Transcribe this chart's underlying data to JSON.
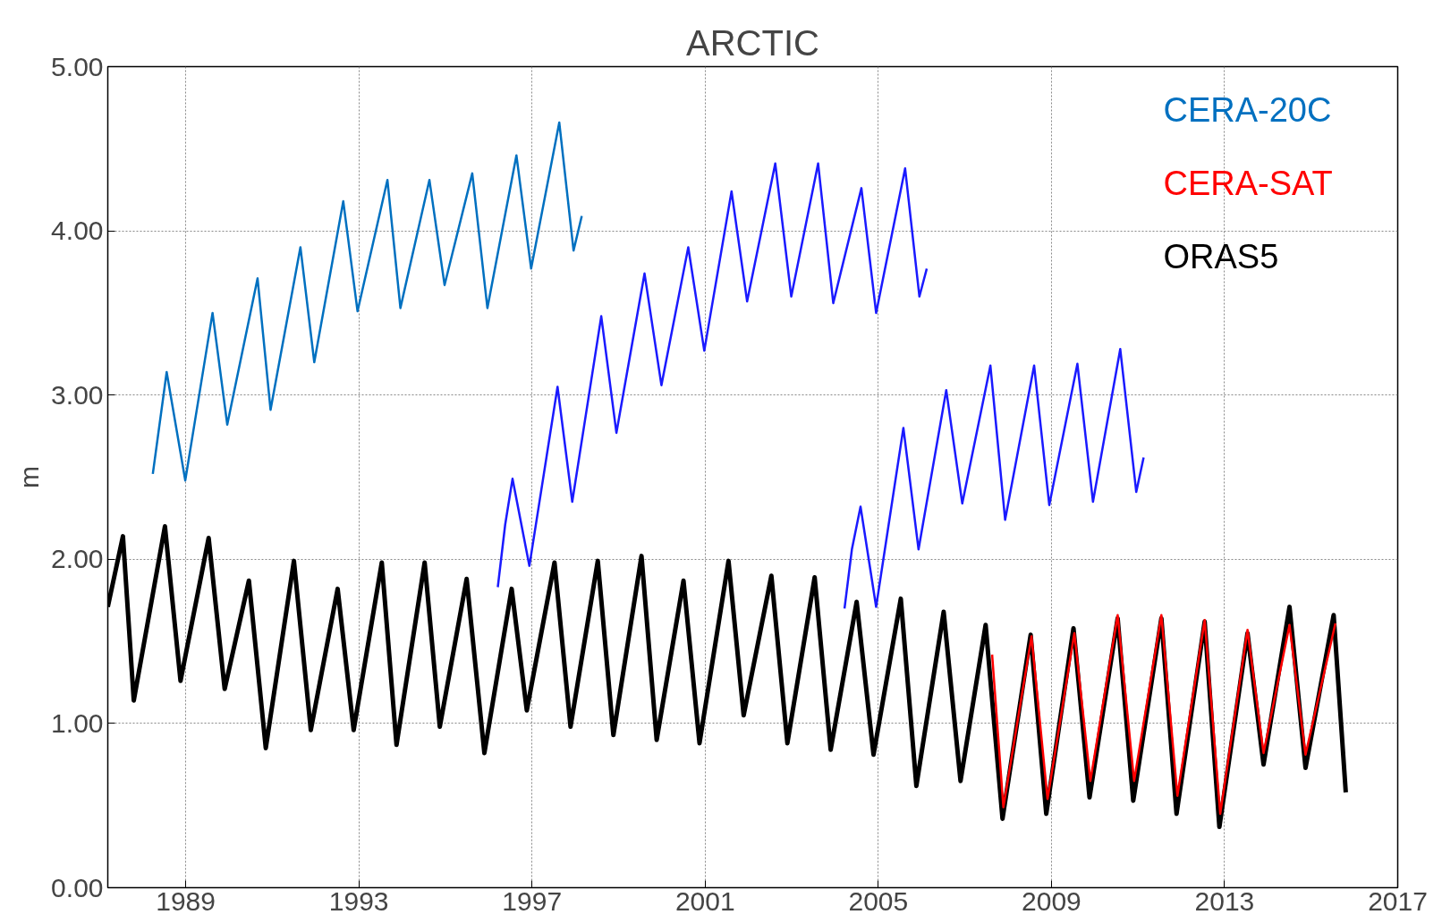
{
  "chart_data": {
    "type": "line",
    "title": "ARCTIC",
    "ylabel": "m",
    "xlim": [
      1987.2,
      2017
    ],
    "xticks": [
      1989,
      1993,
      1997,
      2001,
      2005,
      2009,
      2013,
      2017
    ],
    "ylim": [
      0,
      5
    ],
    "yticks": [
      {
        "value": 0,
        "label": "0.00"
      },
      {
        "value": 1,
        "label": "1.00"
      },
      {
        "value": 2,
        "label": "2.00"
      },
      {
        "value": 3,
        "label": "3.00"
      },
      {
        "value": 4,
        "label": "4.00"
      },
      {
        "value": 5,
        "label": "5.00"
      }
    ],
    "grid": true,
    "legend": "top right",
    "marker": "none",
    "line_style": "solid",
    "series": [
      {
        "name": "CERA-20C",
        "color": "#0070c0",
        "x": [
          1988.24,
          1988.56,
          1988.99,
          1989.62,
          1989.96,
          1990.66,
          1990.96,
          1991.65,
          1991.97,
          1992.64,
          1992.97,
          1993.66,
          1993.96,
          1994.63,
          1994.98,
          1995.62,
          1995.97,
          1996.64,
          1996.98,
          1997.63,
          1997.96,
          1998.15
        ],
        "values": [
          2.52,
          3.14,
          2.48,
          3.5,
          2.82,
          3.71,
          2.91,
          3.9,
          3.2,
          4.18,
          3.51,
          4.31,
          3.53,
          4.31,
          3.67,
          4.35,
          3.53,
          4.46,
          3.77,
          4.66,
          3.88,
          4.09
        ]
      },
      {
        "color": "#1a1aff",
        "x": [
          1996.21,
          1996.38,
          1996.55,
          1996.94,
          1997.59,
          1997.93,
          1998.6,
          1998.95,
          1999.6,
          1999.99,
          2000.61,
          2000.98,
          2001.61,
          2001.97,
          2002.62,
          2002.99,
          2003.61,
          2003.96,
          2004.61,
          2004.95,
          2005.62,
          2005.95,
          2006.12
        ],
        "values": [
          1.83,
          2.21,
          2.49,
          1.96,
          3.05,
          2.35,
          3.48,
          2.77,
          3.74,
          3.06,
          3.9,
          3.27,
          4.24,
          3.57,
          4.41,
          3.6,
          4.41,
          3.56,
          4.26,
          3.5,
          4.38,
          3.6,
          3.77
        ]
      },
      {
        "color": "#1a1aff",
        "x": [
          2004.22,
          2004.39,
          2004.59,
          2004.95,
          2005.58,
          2005.93,
          2006.57,
          2006.94,
          2007.59,
          2007.93,
          2008.6,
          2008.95,
          2009.6,
          2009.96,
          2010.59,
          2010.96,
          2011.13
        ],
        "values": [
          1.7,
          2.06,
          2.32,
          1.71,
          2.8,
          2.06,
          3.03,
          2.34,
          3.18,
          2.24,
          3.18,
          2.33,
          3.19,
          2.35,
          3.28,
          2.41,
          2.62
        ]
      },
      {
        "name": "CERA-SAT",
        "color": "#ff0000",
        "x": [
          2007.63,
          2007.89,
          2008.54,
          2008.91,
          2009.53,
          2009.9,
          2010.53,
          2010.91,
          2011.54,
          2011.91,
          2012.54,
          2012.9,
          2013.53,
          2013.9,
          2014.5,
          2014.87,
          2015.56
        ],
        "values": [
          1.42,
          0.49,
          1.53,
          0.54,
          1.55,
          0.65,
          1.66,
          0.65,
          1.66,
          0.56,
          1.63,
          0.45,
          1.57,
          0.82,
          1.6,
          0.81,
          1.61
        ]
      },
      {
        "name": "ORAS5",
        "color": "#000000",
        "x": [
          1987.2,
          1987.55,
          1987.8,
          1988.52,
          1988.88,
          1989.53,
          1989.9,
          1990.46,
          1990.85,
          1991.5,
          1991.89,
          1992.51,
          1992.88,
          1993.53,
          1993.87,
          1994.52,
          1994.87,
          1995.49,
          1995.9,
          1996.53,
          1996.88,
          1997.52,
          1997.89,
          1998.52,
          1998.88,
          1999.53,
          1999.88,
          2000.5,
          2000.87,
          2001.54,
          2001.89,
          2002.53,
          2002.9,
          2003.53,
          2003.9,
          2004.5,
          2004.89,
          2005.52,
          2005.88,
          2006.51,
          2006.9,
          2007.48,
          2007.87,
          2008.52,
          2008.88,
          2009.51,
          2009.88,
          2010.53,
          2010.89,
          2011.54,
          2011.89,
          2012.54,
          2012.88,
          2013.53,
          2013.9,
          2014.5,
          2014.87,
          2015.52,
          2015.8
        ],
        "values": [
          1.71,
          2.14,
          1.14,
          2.2,
          1.26,
          2.13,
          1.21,
          1.87,
          0.85,
          1.99,
          0.96,
          1.82,
          0.96,
          1.98,
          0.87,
          1.98,
          0.98,
          1.88,
          0.82,
          1.82,
          1.08,
          1.98,
          0.98,
          1.99,
          0.93,
          2.02,
          0.9,
          1.87,
          0.88,
          1.99,
          1.05,
          1.9,
          0.88,
          1.89,
          0.84,
          1.74,
          0.81,
          1.76,
          0.62,
          1.68,
          0.65,
          1.6,
          0.42,
          1.54,
          0.45,
          1.58,
          0.55,
          1.64,
          0.53,
          1.64,
          0.45,
          1.62,
          0.37,
          1.55,
          0.75,
          1.71,
          0.73,
          1.66,
          0.58
        ]
      }
    ]
  }
}
